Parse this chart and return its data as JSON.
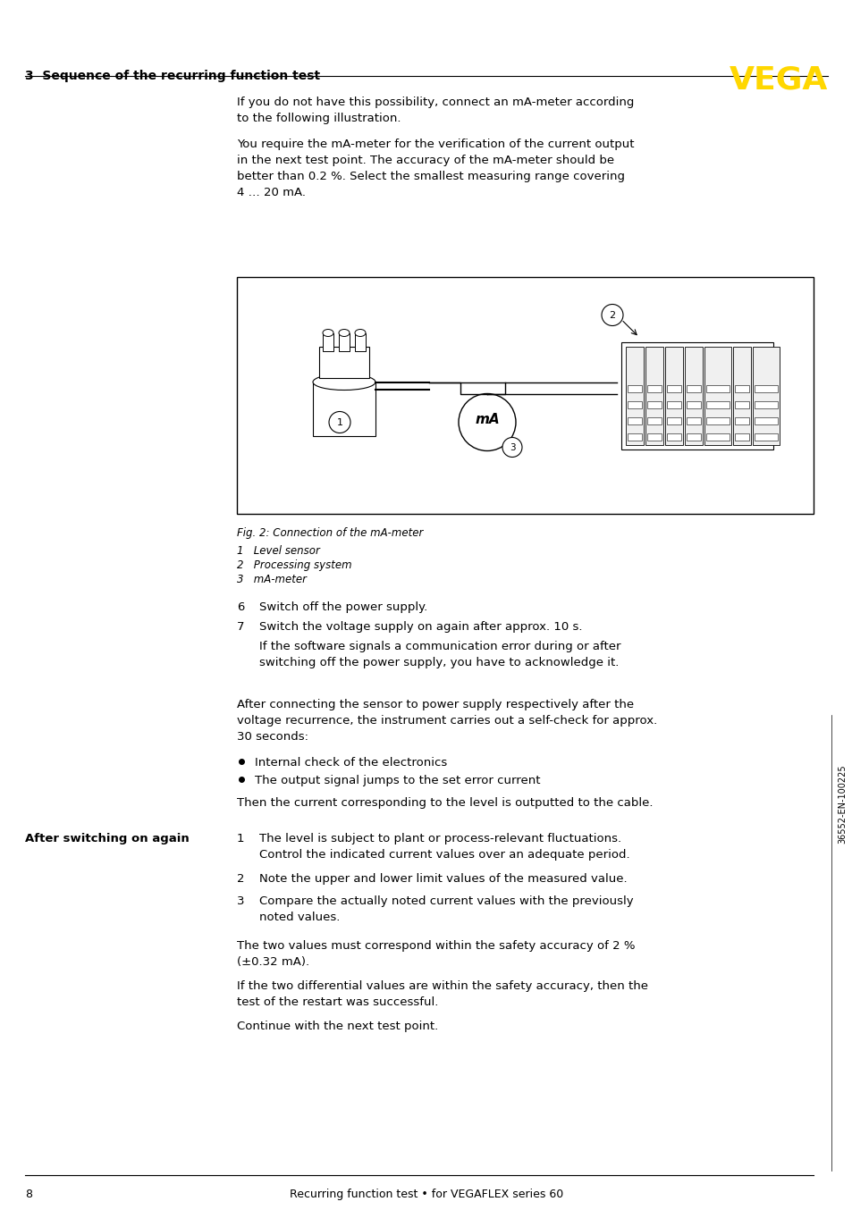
{
  "header_text": "3  Sequence of the recurring function test",
  "vega_logo": "VEGA",
  "vega_color": "#FFD700",
  "footer_page": "8",
  "footer_center": "Recurring function test • for VEGAFLEX series 60",
  "sidebar_text": "36552-EN-100225",
  "para1": "If you do not have this possibility, connect an mA-meter according\nto the following illustration.",
  "para2": "You require the mA-meter for the verification of the current output\nin the next test point. The accuracy of the mA-meter should be\nbetter than 0.2 %. Select the smallest measuring range covering\n4 … 20 mA.",
  "fig_caption": "Fig. 2: Connection of the mA-meter",
  "fig_items": [
    "1   Level sensor",
    "2   Processing system",
    "3   mA-meter"
  ],
  "step6": "Switch off the power supply.",
  "step7": "Switch the voltage supply on again after approx. 10 s.",
  "step7_note": "If the software signals a communication error during or after\nswitching off the power supply, you have to acknowledge it.",
  "para_after": "After connecting the sensor to power supply respectively after the\nvoltage recurrence, the instrument carries out a self-check for approx.\n30 seconds:",
  "bullets": [
    "Internal check of the electronics",
    "The output signal jumps to the set error current"
  ],
  "para_then": "Then the current corresponding to the level is outputted to the cable.",
  "section_label": "After switching on again",
  "items_after": [
    "The level is subject to plant or process-relevant fluctuations.\nControl the indicated current values over an adequate period.",
    "Note the upper and lower limit values of the measured value.",
    "Compare the actually noted current values with the previously\nnoted values."
  ],
  "para_twovals": "The two values must correspond within the safety accuracy of 2 %\n(±0.32 mA).",
  "para_iftwodiff": "If the two differential values are within the safety accuracy, then the\ntest of the restart was successful.",
  "para_continue": "Continue with the next test point.",
  "bg_color": "#FFFFFF",
  "text_color": "#000000",
  "line_color": "#000000"
}
